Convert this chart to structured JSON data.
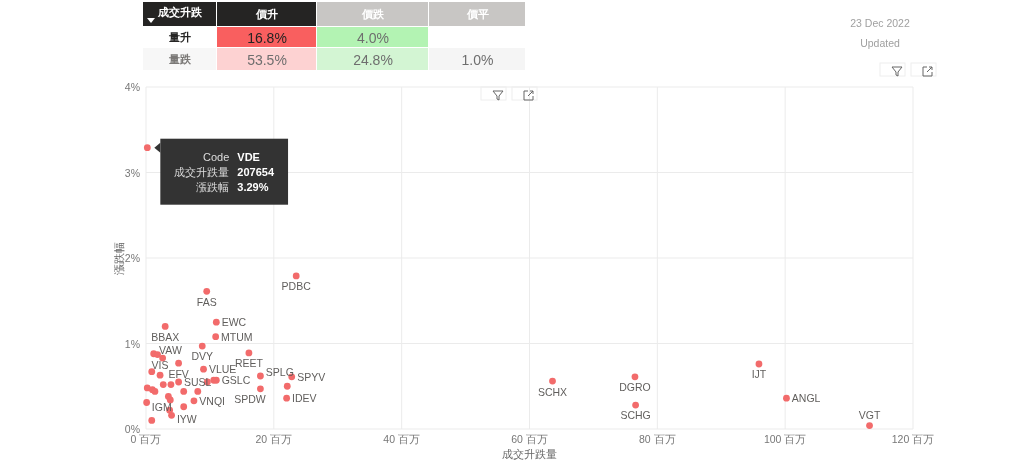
{
  "chart_data": [
    {
      "type": "other",
      "ylabel": "成交升跌",
      "categories": [
        "價升",
        "價跌",
        "價平"
      ],
      "y_categories": [
        "量升",
        "量跌"
      ],
      "cell_labels": [
        [
          "16.8%",
          "4.0%",
          null
        ],
        [
          "53.5%",
          "24.8%",
          "1.0%"
        ]
      ],
      "colors": [
        [
          "#f95f5f",
          "#b3f3b3",
          null
        ],
        [
          "#fdd2d2",
          "#d3f5d3",
          "#f5f5f5"
        ]
      ]
    },
    {
      "type": "other",
      "annotations": [
        "23 Dec 2022",
        "Updated"
      ]
    },
    {
      "type": "scatter",
      "marker": "circle",
      "xlabel": "成交升跌量",
      "ylabel": "漲跌幅",
      "xlim": [
        0,
        120
      ],
      "xticks": [
        {
          "value": 0,
          "label": "0 百万"
        },
        {
          "value": 20,
          "label": "20 百万"
        },
        {
          "value": 40,
          "label": "40 百万"
        },
        {
          "value": 60,
          "label": "60 百万"
        },
        {
          "value": 80,
          "label": "80 百万"
        },
        {
          "value": 100,
          "label": "100 百万"
        },
        {
          "value": 120,
          "label": "120 百万"
        }
      ],
      "ylim": [
        0,
        4
      ],
      "yticks": [
        {
          "value": 0,
          "label": "0%"
        },
        {
          "value": 1,
          "label": "1%"
        },
        {
          "value": 2,
          "label": "2%"
        },
        {
          "value": 3,
          "label": "3%"
        },
        {
          "value": 4,
          "label": "4%"
        }
      ],
      "grid": true,
      "series": [
        {
          "color": "#f26b6b",
          "x": [
            0.207654,
            23.5,
            9.5,
            3.0,
            11.0,
            10.9,
            8.8,
            16.1,
            1.2,
            1.8,
            2.6,
            5.1,
            0.9,
            2.2,
            9.0,
            9.6,
            10.6,
            11.0,
            17.9,
            17.9,
            22.8,
            22.1,
            22.0,
            0.2,
            1.0,
            1.4,
            2.7,
            3.9,
            5.1,
            5.9,
            3.5,
            3.8,
            8.1,
            7.5,
            0.1,
            5.9,
            3.7,
            0.9,
            4.0,
            63.6,
            76.5,
            76.6,
            95.9,
            100.2,
            113.2
          ],
          "values": [
            3.29,
            1.79,
            1.61,
            1.2,
            1.25,
            1.08,
            0.97,
            0.89,
            0.88,
            0.87,
            0.83,
            0.77,
            0.67,
            0.63,
            0.7,
            0.55,
            0.57,
            0.57,
            0.62,
            0.47,
            0.61,
            0.5,
            0.36,
            0.48,
            0.46,
            0.44,
            0.52,
            0.52,
            0.55,
            0.44,
            0.38,
            0.34,
            0.44,
            0.33,
            0.31,
            0.26,
            0.22,
            0.1,
            0.16,
            0.56,
            0.61,
            0.28,
            0.76,
            0.36,
            0.04
          ],
          "value_labels": [
            null,
            "PDBC",
            "FAS",
            "BBAX",
            "EWC",
            "MTUM",
            "DVY",
            "REET",
            "VAW",
            null,
            null,
            "EFV",
            null,
            "VIS",
            "VLUE",
            null,
            null,
            "GSLC",
            "SPLG",
            "SPDW",
            "SPYV",
            null,
            "IDEV",
            null,
            null,
            null,
            null,
            null,
            "SUSL",
            null,
            "IGM",
            null,
            null,
            "VNQI",
            null,
            null,
            null,
            null,
            "IYW",
            "SCHX",
            "DGRO",
            "SCHG",
            "IJT",
            "ANGL",
            "VGT"
          ]
        }
      ],
      "annotations": [
        {
          "text": "Code VDE\n成交升跌量 207654\n漲跌幅 3.29%",
          "x": 0.207654,
          "y": 3.29
        }
      ]
    }
  ]
}
